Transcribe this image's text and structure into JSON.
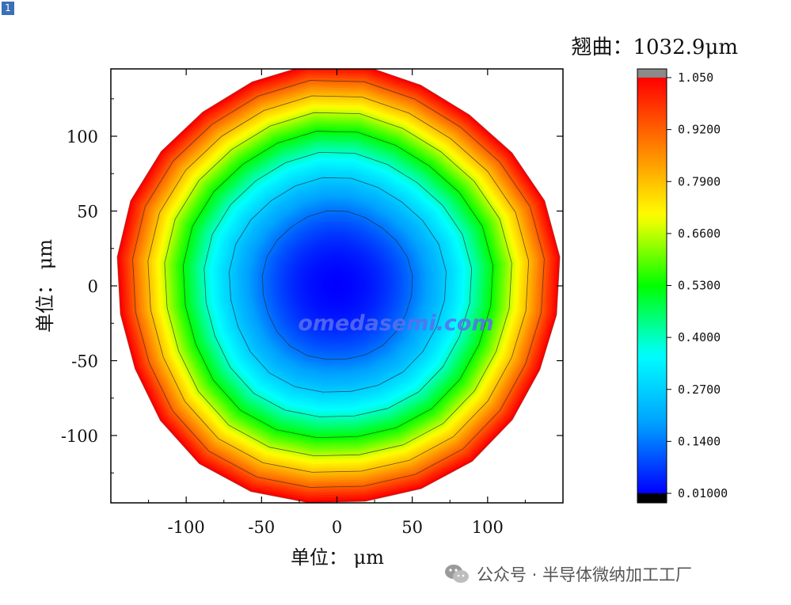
{
  "badge": "1",
  "chart_data": {
    "type": "heatmap",
    "title": "翘曲：1032.9μm",
    "xlabel": "单位： μm",
    "ylabel": "单位： μm",
    "xlim": [
      -150,
      150
    ],
    "ylim": [
      -145,
      145
    ],
    "x_ticks": [
      -100,
      -50,
      0,
      50,
      100
    ],
    "y_ticks": [
      100,
      50,
      0,
      -50,
      -100
    ],
    "x_tick_labels": [
      "-100",
      "-50",
      "0",
      "50",
      "100"
    ],
    "y_tick_labels": [
      "100",
      "50",
      "0",
      "-50",
      "-100"
    ],
    "region": "circle",
    "radius": 147,
    "center": [
      0,
      0
    ],
    "value_at_center": 0.01,
    "value_at_edge": 1.05,
    "contour_levels": [
      0.13,
      0.26,
      0.39,
      0.52,
      0.65,
      0.78,
      0.91
    ],
    "colorbar": {
      "min": 0.01,
      "max": 1.05,
      "tick_labels": [
        "1.050",
        "0.9200",
        "0.7900",
        "0.6600",
        "0.5300",
        "0.4000",
        "0.2700",
        "0.1400",
        "0.01000"
      ],
      "tick_values": [
        1.05,
        0.92,
        0.79,
        0.66,
        0.53,
        0.4,
        0.27,
        0.14,
        0.01
      ],
      "over_color": "#8a8a8a",
      "under_color": "#000000",
      "colors": [
        "#0000ff",
        "#00a0ff",
        "#00ffff",
        "#00ff00",
        "#ffff00",
        "#ff8000",
        "#ff0000"
      ]
    }
  },
  "watermark": "omedasemi.com",
  "footer": "公众号 · 半导体微纳加工工厂"
}
